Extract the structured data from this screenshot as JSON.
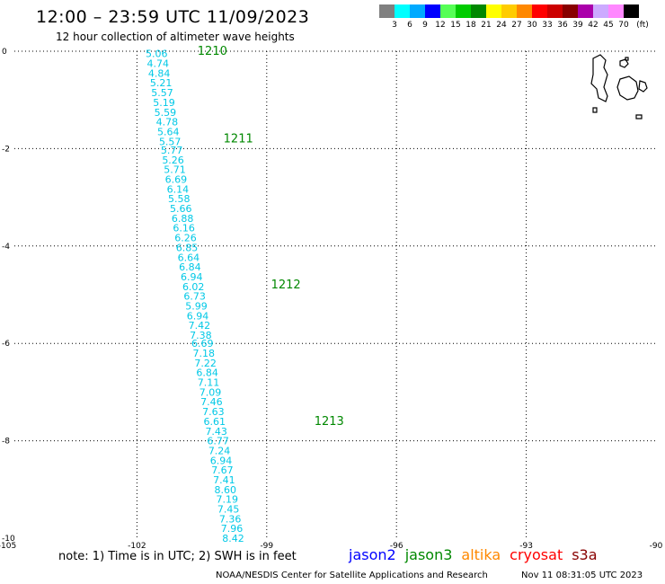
{
  "header": {
    "title": "12:00 – 23:59 UTC 11/09/2023",
    "subtitle": "12 hour collection of altimeter wave heights"
  },
  "colorbar": {
    "labels": [
      "3",
      "6",
      "9",
      "12",
      "15",
      "18",
      "21",
      "24",
      "27",
      "30",
      "33",
      "36",
      "39",
      "42",
      "45",
      "70"
    ],
    "unit": "(ft)",
    "colors": [
      "#808080",
      "#00ffff",
      "#00aaff",
      "#0000ff",
      "#55ff55",
      "#00cc00",
      "#008800",
      "#ffff00",
      "#ffcc00",
      "#ff8800",
      "#ff0000",
      "#cc0000",
      "#880000",
      "#aa00aa",
      "#ccaaff",
      "#ff88ff",
      "#000000"
    ]
  },
  "footer": {
    "note": "note:  1) Time is in UTC;  2) SWH is in feet",
    "satellites": [
      {
        "name": "jason2",
        "color": "#0000ff"
      },
      {
        "name": "jason3",
        "color": "#008800"
      },
      {
        "name": "altika",
        "color": "#ff8800"
      },
      {
        "name": "cryosat",
        "color": "#ff0000"
      },
      {
        "name": "s3a",
        "color": "#880000"
      }
    ],
    "credit": "NOAA/NESDIS Center for Satellite Applications and Research",
    "timestamp": "Nov 11 08:31:05 UTC 2023"
  },
  "chart_data": {
    "type": "scatter",
    "xlim": [
      -105,
      -90
    ],
    "ylim": [
      -10,
      0
    ],
    "x_ticks": [
      "-105",
      "-102",
      "-99",
      "-96",
      "-93",
      "-90"
    ],
    "y_ticks": [
      "0",
      "-2",
      "-4",
      "-6",
      "-8",
      "-10"
    ],
    "grid": true,
    "wave_heights": [
      {
        "lon": -101.8,
        "lat": -0.05,
        "swh": "5.06"
      },
      {
        "lon": -101.77,
        "lat": -0.25,
        "swh": "4.74"
      },
      {
        "lon": -101.74,
        "lat": -0.45,
        "swh": "4.84"
      },
      {
        "lon": -101.7,
        "lat": -0.65,
        "swh": "5.21"
      },
      {
        "lon": -101.67,
        "lat": -0.85,
        "swh": "5.57"
      },
      {
        "lon": -101.63,
        "lat": -1.05,
        "swh": "5.19"
      },
      {
        "lon": -101.6,
        "lat": -1.25,
        "swh": "5.59"
      },
      {
        "lon": -101.56,
        "lat": -1.45,
        "swh": "4.78"
      },
      {
        "lon": -101.53,
        "lat": -1.65,
        "swh": "5.64"
      },
      {
        "lon": -101.49,
        "lat": -1.85,
        "swh": "5.57"
      },
      {
        "lon": -101.45,
        "lat": -2.03,
        "swh": "5.77"
      },
      {
        "lon": -101.42,
        "lat": -2.23,
        "swh": "5.26"
      },
      {
        "lon": -101.38,
        "lat": -2.43,
        "swh": "5.71"
      },
      {
        "lon": -101.35,
        "lat": -2.63,
        "swh": "6.69"
      },
      {
        "lon": -101.31,
        "lat": -2.83,
        "swh": "6.14"
      },
      {
        "lon": -101.28,
        "lat": -3.03,
        "swh": "5.58"
      },
      {
        "lon": -101.24,
        "lat": -3.23,
        "swh": "5.66"
      },
      {
        "lon": -101.2,
        "lat": -3.43,
        "swh": "6.88"
      },
      {
        "lon": -101.17,
        "lat": -3.63,
        "swh": "6.16"
      },
      {
        "lon": -101.13,
        "lat": -3.83,
        "swh": "6.26"
      },
      {
        "lon": -101.1,
        "lat": -4.03,
        "swh": "6.85"
      },
      {
        "lon": -101.06,
        "lat": -4.23,
        "swh": "6.64"
      },
      {
        "lon": -101.03,
        "lat": -4.43,
        "swh": "6.84"
      },
      {
        "lon": -100.99,
        "lat": -4.63,
        "swh": "6.94"
      },
      {
        "lon": -100.95,
        "lat": -4.83,
        "swh": "6.02"
      },
      {
        "lon": -100.92,
        "lat": -5.03,
        "swh": "6.73"
      },
      {
        "lon": -100.88,
        "lat": -5.23,
        "swh": "5.99"
      },
      {
        "lon": -100.85,
        "lat": -5.43,
        "swh": "6.94"
      },
      {
        "lon": -100.81,
        "lat": -5.63,
        "swh": "7.42"
      },
      {
        "lon": -100.78,
        "lat": -5.83,
        "swh": "7.38"
      },
      {
        "lon": -100.74,
        "lat": -6.0,
        "swh": "6.69"
      },
      {
        "lon": -100.71,
        "lat": -6.2,
        "swh": "7.18"
      },
      {
        "lon": -100.67,
        "lat": -6.4,
        "swh": "7.22"
      },
      {
        "lon": -100.63,
        "lat": -6.6,
        "swh": "6.84"
      },
      {
        "lon": -100.6,
        "lat": -6.8,
        "swh": "7.11"
      },
      {
        "lon": -100.56,
        "lat": -7.0,
        "swh": "7.09"
      },
      {
        "lon": -100.53,
        "lat": -7.2,
        "swh": "7.46"
      },
      {
        "lon": -100.49,
        "lat": -7.4,
        "swh": "7.63"
      },
      {
        "lon": -100.46,
        "lat": -7.6,
        "swh": "6.61"
      },
      {
        "lon": -100.42,
        "lat": -7.8,
        "swh": "7.43"
      },
      {
        "lon": -100.38,
        "lat": -8.0,
        "swh": "6.77"
      },
      {
        "lon": -100.35,
        "lat": -8.2,
        "swh": "7.24"
      },
      {
        "lon": -100.31,
        "lat": -8.4,
        "swh": "6.94"
      },
      {
        "lon": -100.28,
        "lat": -8.6,
        "swh": "7.67"
      },
      {
        "lon": -100.24,
        "lat": -8.8,
        "swh": "7.41"
      },
      {
        "lon": -100.21,
        "lat": -9.0,
        "swh": "8.60"
      },
      {
        "lon": -100.17,
        "lat": -9.2,
        "swh": "7.19"
      },
      {
        "lon": -100.14,
        "lat": -9.4,
        "swh": "7.45"
      },
      {
        "lon": -100.1,
        "lat": -9.6,
        "swh": "7.36"
      },
      {
        "lon": -100.06,
        "lat": -9.8,
        "swh": "7.96"
      },
      {
        "lon": -100.03,
        "lat": -10.0,
        "swh": "8.42"
      }
    ],
    "time_labels": [
      {
        "lon": -100.6,
        "lat": 0.0,
        "time": "1210"
      },
      {
        "lon": -100.0,
        "lat": -1.8,
        "time": "1211"
      },
      {
        "lon": -98.9,
        "lat": -4.8,
        "time": "1212"
      },
      {
        "lon": -97.9,
        "lat": -7.6,
        "time": "1213"
      }
    ]
  }
}
